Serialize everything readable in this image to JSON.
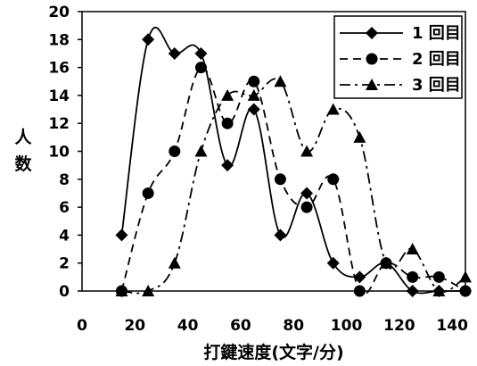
{
  "chart_data": {
    "type": "line",
    "title": "",
    "xlabel": "打鍵速度(文字/分)",
    "ylabel": "人数",
    "ylim": [
      0,
      20
    ],
    "xlim": [
      0,
      145
    ],
    "x_ticks": [
      "0",
      "20",
      "40",
      "60",
      "80",
      "100",
      "120",
      "140"
    ],
    "y_ticks": [
      "0",
      "2",
      "4",
      "6",
      "8",
      "10",
      "12",
      "14",
      "16",
      "18",
      "20"
    ],
    "legend_position": "top-right",
    "grid": false,
    "series": [
      {
        "name": "1 回目",
        "line_style": "solid",
        "marker": "diamond",
        "x": [
          15,
          25,
          35,
          45,
          55,
          65,
          75,
          85,
          95,
          105,
          115,
          125,
          135,
          145
        ],
        "values": [
          4,
          18,
          17,
          17,
          9,
          13,
          4,
          7,
          2,
          1,
          2,
          0,
          0,
          0
        ]
      },
      {
        "name": "2 回目",
        "line_style": "dashed",
        "marker": "circle",
        "x": [
          15,
          25,
          35,
          45,
          55,
          65,
          75,
          85,
          95,
          105,
          115,
          125,
          135,
          145
        ],
        "values": [
          0,
          7,
          10,
          16,
          12,
          15,
          8,
          6,
          8,
          0,
          2,
          1,
          1,
          0
        ]
      },
      {
        "name": "3 回目",
        "line_style": "dash-dot",
        "marker": "triangle",
        "x": [
          15,
          25,
          35,
          45,
          55,
          65,
          75,
          85,
          95,
          105,
          115,
          125,
          135,
          145
        ],
        "values": [
          0,
          0,
          2,
          10,
          14,
          14,
          15,
          10,
          13,
          11,
          2,
          3,
          0,
          1
        ]
      }
    ]
  }
}
